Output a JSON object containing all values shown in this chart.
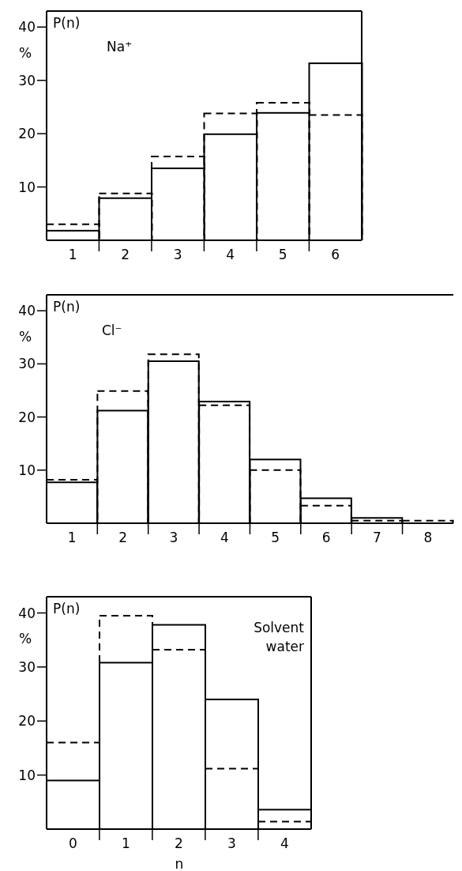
{
  "chart_data": [
    {
      "type": "bar",
      "ylabel": "%",
      "annotations": [
        "P(n)",
        "Na⁺"
      ],
      "categories": [
        "1",
        "2",
        "3",
        "4",
        "5",
        "6"
      ],
      "ylim": [
        0,
        43
      ],
      "yticks": [
        10,
        20,
        30,
        40
      ],
      "series": [
        {
          "color": "#000000",
          "line_style": "solid",
          "values": [
            1.8,
            7.9,
            13.5,
            19.9,
            23.9,
            33.2
          ]
        },
        {
          "color": "#000000",
          "line_style": "dashed",
          "values": [
            3.0,
            8.8,
            15.7,
            23.8,
            25.8,
            23.5
          ]
        }
      ]
    },
    {
      "type": "bar",
      "ylabel": "%",
      "annotations": [
        "P(n)",
        "Cl⁻"
      ],
      "categories": [
        "1",
        "2",
        "3",
        "4",
        "5",
        "6",
        "7",
        "8"
      ],
      "ylim": [
        0,
        43
      ],
      "yticks": [
        10,
        20,
        30,
        40
      ],
      "series": [
        {
          "color": "#000000",
          "line_style": "solid",
          "values": [
            7.7,
            21.2,
            30.5,
            22.9,
            12.0,
            4.7,
            1.0,
            null
          ]
        },
        {
          "color": "#000000",
          "line_style": "dashed",
          "values": [
            8.2,
            24.9,
            31.8,
            22.2,
            10.0,
            3.3,
            0.5,
            0.5
          ]
        }
      ]
    },
    {
      "type": "bar",
      "ylabel": "%",
      "xlabel": "n",
      "annotations": [
        "P(n)",
        "Solvent water"
      ],
      "categories": [
        "0",
        "1",
        "2",
        "3",
        "4"
      ],
      "ylim": [
        0,
        43
      ],
      "yticks": [
        10,
        20,
        30,
        40
      ],
      "series": [
        {
          "color": "#000000",
          "line_style": "solid",
          "values": [
            9.0,
            30.8,
            37.8,
            24.0,
            3.6
          ]
        },
        {
          "color": "#000000",
          "line_style": "dashed",
          "values": [
            16.0,
            39.5,
            33.2,
            11.2,
            1.4
          ]
        }
      ]
    }
  ]
}
